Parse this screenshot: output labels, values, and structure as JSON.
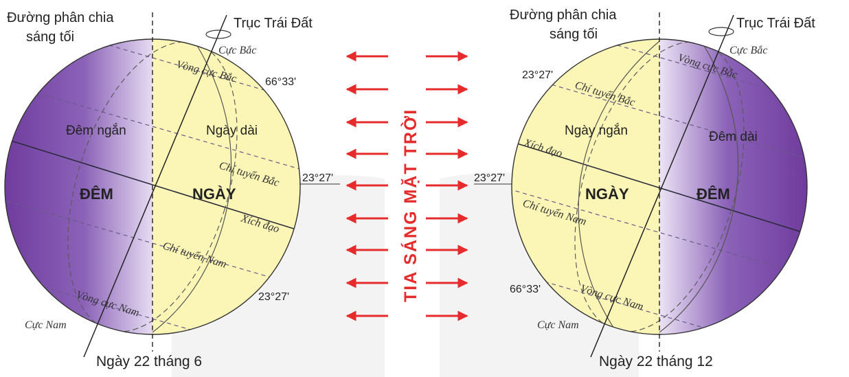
{
  "colors": {
    "day": "#fbf6b5",
    "night": "#7a4aa8",
    "arrow": "#e52b2b",
    "ray_text": "#e52b2b"
  },
  "rays_label": "TIA SÁNG MẶT TRỜI",
  "left": {
    "terminator_label_line1": "Đường phân chia",
    "terminator_label_line2": "sáng tối",
    "axis_label": "Trục Trái Đất",
    "north_pole": "Cực Bắc",
    "south_pole": "Cực Nam",
    "arctic_circle": "Vòng cực Bắc",
    "antarctic_circle": "Vòng cực Nam",
    "tropic_cancer": "Chí tuyến Bắc",
    "tropic_capricorn": "Chí tuyến Nam",
    "equator": "Xích đạo",
    "lat_66": "66°33'",
    "lat_23_n": "23°27'",
    "lat_23_s": "23°27'",
    "short_night": "Đêm ngắn",
    "long_day": "Ngày dài",
    "night": "ĐÊM",
    "day": "NGÀY",
    "date": "Ngày 22 tháng 6"
  },
  "right": {
    "terminator_label_line1": "Đường phân chia",
    "terminator_label_line2": "sáng tối",
    "axis_label": "Trục Trái Đất",
    "north_pole": "Cực Bắc",
    "south_pole": "Cực Nam",
    "arctic_circle": "Vòng cực Bắc",
    "antarctic_circle": "Vòng cực Nam",
    "tropic_cancer": "Chí tuyến Bắc",
    "tropic_capricorn": "Chí tuyến Nam",
    "equator": "Xích đạo",
    "lat_23_n": "23°27'",
    "lat_23_mid": "23°27'",
    "lat_66": "66°33'",
    "short_day": "Ngày ngắn",
    "long_night": "Đêm dài",
    "day": "NGÀY",
    "night": "ĐÊM",
    "date": "Ngày 22 tháng 12"
  }
}
